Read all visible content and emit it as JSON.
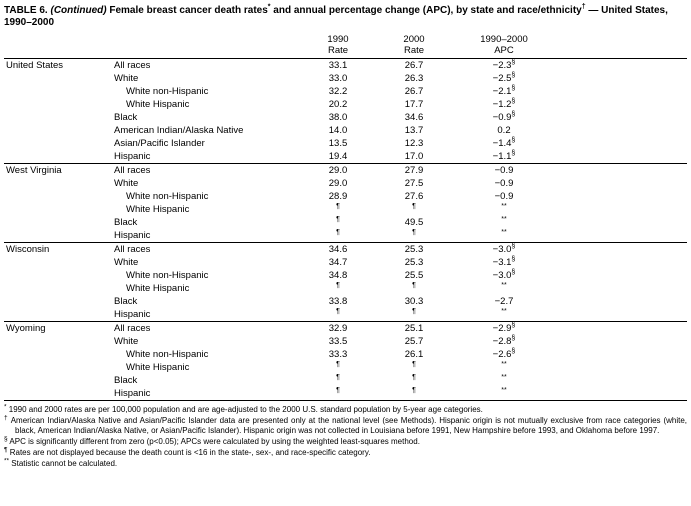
{
  "title": {
    "label": "TABLE 6. ",
    "continued": "(Continued)",
    "part1": " Female breast cancer death rates",
    "sup1": "*",
    "part2": " and annual percentage change (APC), by state and race/ethnicity",
    "sup2": "†",
    "part3": " — United States, 1990–2000"
  },
  "table": {
    "header": {
      "col1990": {
        "line1": "1990",
        "line2": "Rate"
      },
      "col2000": {
        "line1": "2000",
        "line2": "Rate"
      },
      "colapc": {
        "line1": "1990–2000",
        "line2": "APC"
      }
    },
    "groups": [
      {
        "state": "United States",
        "rows": [
          {
            "label": "All races",
            "indent": 1,
            "r1990": "33.1",
            "r2000": "26.7",
            "apc": "−2.3§"
          },
          {
            "label": "White",
            "indent": 1,
            "r1990": "33.0",
            "r2000": "26.3",
            "apc": "−2.5§"
          },
          {
            "label": "White non-Hispanic",
            "indent": 2,
            "r1990": "32.2",
            "r2000": "26.7",
            "apc": "−2.1§"
          },
          {
            "label": "White Hispanic",
            "indent": 2,
            "r1990": "20.2",
            "r2000": "17.7",
            "apc": "−1.2§"
          },
          {
            "label": "Black",
            "indent": 1,
            "r1990": "38.0",
            "r2000": "34.6",
            "apc": "−0.9§"
          },
          {
            "label": "American Indian/Alaska Native",
            "indent": 1,
            "r1990": "14.0",
            "r2000": "13.7",
            "apc": "0.2"
          },
          {
            "label": "Asian/Pacific Islander",
            "indent": 1,
            "r1990": "13.5",
            "r2000": "12.3",
            "apc": "−1.4§"
          },
          {
            "label": "Hispanic",
            "indent": 1,
            "r1990": "19.4",
            "r2000": "17.0",
            "apc": "−1.1§"
          }
        ]
      },
      {
        "state": "West Virginia",
        "rows": [
          {
            "label": "All races",
            "indent": 1,
            "r1990": "29.0",
            "r2000": "27.9",
            "apc": "−0.9"
          },
          {
            "label": "White",
            "indent": 1,
            "r1990": "29.0",
            "r2000": "27.5",
            "apc": "−0.9"
          },
          {
            "label": "White non-Hispanic",
            "indent": 2,
            "r1990": "28.9",
            "r2000": "27.6",
            "apc": "−0.9"
          },
          {
            "label": "White Hispanic",
            "indent": 2,
            "r1990": "¶",
            "r2000": "¶",
            "apc": "**"
          },
          {
            "label": "Black",
            "indent": 1,
            "r1990": "¶",
            "r2000": "49.5",
            "apc": "**"
          },
          {
            "label": "Hispanic",
            "indent": 1,
            "r1990": "¶",
            "r2000": "¶",
            "apc": "**"
          }
        ]
      },
      {
        "state": "Wisconsin",
        "rows": [
          {
            "label": "All races",
            "indent": 1,
            "r1990": "34.6",
            "r2000": "25.3",
            "apc": "−3.0§"
          },
          {
            "label": "White",
            "indent": 1,
            "r1990": "34.7",
            "r2000": "25.3",
            "apc": "−3.1§"
          },
          {
            "label": "White non-Hispanic",
            "indent": 2,
            "r1990": "34.8",
            "r2000": "25.5",
            "apc": "−3.0§"
          },
          {
            "label": "White Hispanic",
            "indent": 2,
            "r1990": "¶",
            "r2000": "¶",
            "apc": "**"
          },
          {
            "label": "Black",
            "indent": 1,
            "r1990": "33.8",
            "r2000": "30.3",
            "apc": "−2.7"
          },
          {
            "label": "Hispanic",
            "indent": 1,
            "r1990": "¶",
            "r2000": "¶",
            "apc": "**"
          }
        ]
      },
      {
        "state": "Wyoming",
        "rows": [
          {
            "label": "All races",
            "indent": 1,
            "r1990": "32.9",
            "r2000": "25.1",
            "apc": "−2.9§"
          },
          {
            "label": "White",
            "indent": 1,
            "r1990": "33.5",
            "r2000": "25.7",
            "apc": "−2.8§"
          },
          {
            "label": "White non-Hispanic",
            "indent": 2,
            "r1990": "33.3",
            "r2000": "26.1",
            "apc": "−2.6§"
          },
          {
            "label": "White Hispanic",
            "indent": 2,
            "r1990": "¶",
            "r2000": "¶",
            "apc": "**"
          },
          {
            "label": "Black",
            "indent": 1,
            "r1990": "¶",
            "r2000": "¶",
            "apc": "**"
          },
          {
            "label": "Hispanic",
            "indent": 1,
            "r1990": "¶",
            "r2000": "¶",
            "apc": "**"
          }
        ]
      }
    ]
  },
  "footnotes": [
    {
      "marker": "*",
      "text": "1990 and 2000 rates are per 100,000 population and are age-adjusted to the 2000 U.S. standard population by 5-year age categories."
    },
    {
      "marker": "†",
      "text": "American Indian/Alaska Native and Asian/Pacific Islander data are presented only at the national level (see Methods). Hispanic origin is not mutually exclusive from race categories (white, black, American Indian/Alaska Native, or Asian/Pacific Islander). Hispanic origin was not collected in Louisiana before 1991, New Hampshire before 1993, and Oklahoma before 1997."
    },
    {
      "marker": "§",
      "text": "APC is significantly different from zero (p<0.05); APCs were calculated by using the weighted least-squares method."
    },
    {
      "marker": "¶",
      "text": "Rates are not displayed because the death count is <16 in the state-, sex-, and race-specific category."
    },
    {
      "marker": "**",
      "text": "Statistic cannot be calculated."
    }
  ]
}
